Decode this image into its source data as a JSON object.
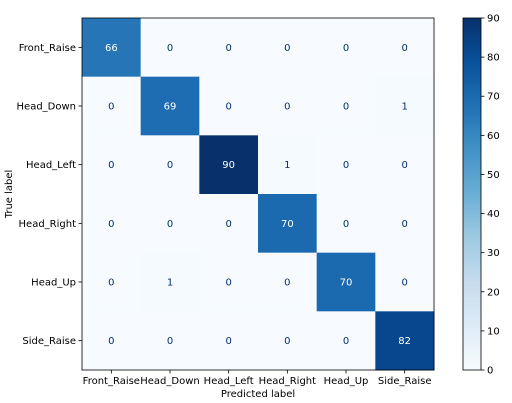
{
  "chart_data": {
    "type": "heatmap",
    "title": "",
    "xlabel": "Predicted label",
    "ylabel": "True label",
    "x_categories": [
      "Front_Raise",
      "Head_Down",
      "Head_Left",
      "Head_Right",
      "Head_Up",
      "Side_Raise"
    ],
    "y_categories": [
      "Front_Raise",
      "Head_Down",
      "Head_Left",
      "Head_Right",
      "Head_Up",
      "Side_Raise"
    ],
    "values": [
      [
        66,
        0,
        0,
        0,
        0,
        0
      ],
      [
        0,
        69,
        0,
        0,
        0,
        1
      ],
      [
        0,
        0,
        90,
        1,
        0,
        0
      ],
      [
        0,
        0,
        0,
        70,
        0,
        0
      ],
      [
        0,
        1,
        0,
        0,
        70,
        0
      ],
      [
        0,
        0,
        0,
        0,
        0,
        82
      ]
    ],
    "colormap": "Blues",
    "colorbar": {
      "range": [
        0,
        90
      ],
      "ticks": [
        0,
        10,
        20,
        30,
        40,
        50,
        60,
        70,
        80,
        90
      ]
    },
    "grid": false,
    "legend": "none"
  }
}
